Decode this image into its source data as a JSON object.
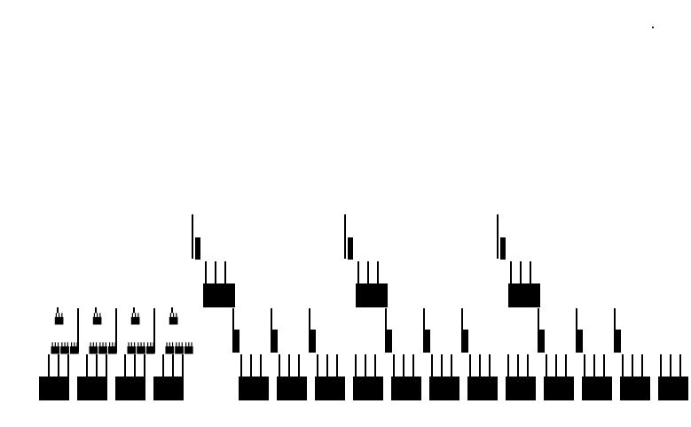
{
  "figure": {
    "kind": "self-similar fractal tree (recursive branching pattern)",
    "ink_color": "#000000",
    "background_color": "#ffffff",
    "recursion_depth": 4,
    "branching_factor": 4,
    "stray_dot": true
  }
}
